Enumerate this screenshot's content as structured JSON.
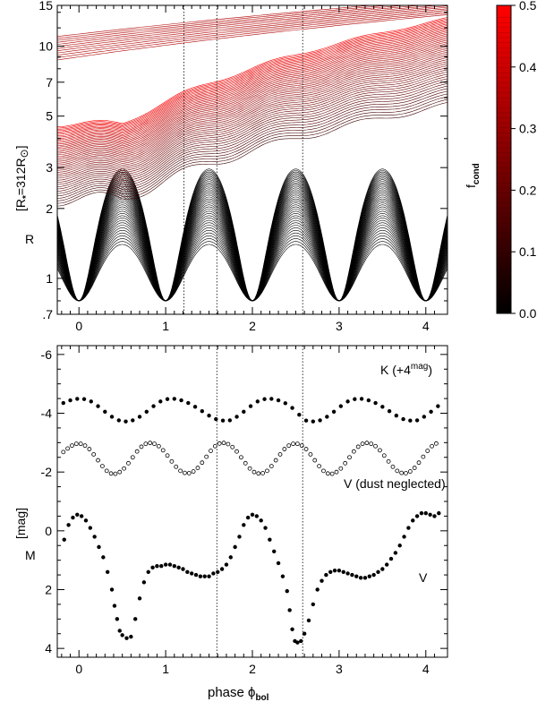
{
  "chart_data": [
    {
      "type": "line",
      "panel": "top",
      "ylabel": "R",
      "ylabel_unit": "[R",
      "ylabel_sub": "*",
      "ylabel_eq": "=312R",
      "ylabel_end": "]",
      "yscale": "log",
      "xlim": [
        -0.25,
        4.25
      ],
      "ylim": [
        0.7,
        15
      ],
      "x_ticks": [
        0,
        1,
        2,
        3,
        4
      ],
      "x_tick_labels": [
        "0",
        "1",
        "2",
        "3",
        "4"
      ],
      "y_ticks": [
        0.7,
        1,
        2,
        3,
        5,
        7,
        10,
        15
      ],
      "y_tick_labels": [
        ".7",
        "1",
        "2",
        "3",
        "5",
        "7",
        "10",
        "15"
      ],
      "vertical_dotted_lines": [
        1.21,
        1.59,
        2.58
      ],
      "description_series": [
        {
          "name": "",
          "pulsation_min_radius": 0.8,
          "pulsation_max_radius": 2.4,
          "period": 1.0
        }
      ],
      "colorbar": {
        "label": "f",
        "label_sub": "cond",
        "range": [
          0.0,
          0.5
        ],
        "ticks": [
          0.0,
          0.1,
          0.2,
          0.3,
          0.4,
          0.5
        ],
        "tick_labels": [
          "0.0",
          "0.1",
          "0.2",
          "0.3",
          "0.4",
          "0.5"
        ],
        "color_low": "#000000",
        "color_high": "#ff0000"
      }
    },
    {
      "type": "scatter",
      "panel": "bottom",
      "xlabel": "phase ϕ",
      "xlabel_sub": "bol",
      "ylabel": "M",
      "ylabel_unit": "[mag]",
      "xlim": [
        -0.25,
        4.25
      ],
      "ylim": [
        4.3,
        -6.3
      ],
      "x_ticks": [
        0,
        1,
        2,
        3,
        4
      ],
      "x_tick_labels": [
        "0",
        "1",
        "2",
        "3",
        "4"
      ],
      "y_ticks": [
        -6,
        -4,
        -2,
        0,
        2,
        4
      ],
      "y_tick_labels": [
        "-6",
        "-4",
        "-2",
        "0",
        "2",
        "4"
      ],
      "vertical_dotted_lines": [
        1.59,
        2.58
      ],
      "series": [
        {
          "name": "K (+4",
          "name_sup": "mag",
          "name_end": ")",
          "marker": "filled",
          "x": [
            -0.18,
            -0.1,
            -0.02,
            0.06,
            0.14,
            0.22,
            0.3,
            0.38,
            0.46,
            0.54,
            0.62,
            0.7,
            0.78,
            0.86,
            0.94,
            1.02,
            1.1,
            1.18,
            1.26,
            1.34,
            1.42,
            1.5,
            1.58,
            1.66,
            1.74,
            1.82,
            1.9,
            1.98,
            2.06,
            2.14,
            2.22,
            2.3,
            2.38,
            2.46,
            2.54,
            2.62,
            2.7,
            2.78,
            2.86,
            2.94,
            3.02,
            3.1,
            3.18,
            3.26,
            3.34,
            3.42,
            3.5,
            3.58,
            3.66,
            3.74,
            3.82,
            3.9,
            3.98,
            4.06,
            4.14
          ],
          "y": [
            -4.35,
            -4.44,
            -4.49,
            -4.48,
            -4.4,
            -4.24,
            -4.05,
            -3.88,
            -3.76,
            -3.72,
            -3.76,
            -3.88,
            -4.05,
            -4.24,
            -4.4,
            -4.48,
            -4.49,
            -4.44,
            -4.35,
            -4.22,
            -4.07,
            -3.92,
            -3.8,
            -3.75,
            -3.76,
            -3.88,
            -4.05,
            -4.24,
            -4.4,
            -4.48,
            -4.49,
            -4.44,
            -4.34,
            -4.18,
            -3.95,
            -3.75,
            -3.72,
            -3.76,
            -3.88,
            -4.05,
            -4.24,
            -4.4,
            -4.48,
            -4.49,
            -4.44,
            -4.35,
            -4.22,
            -4.07,
            -3.92,
            -3.8,
            -3.75,
            -3.76,
            -3.88,
            -4.05,
            -4.24
          ]
        },
        {
          "name": "V (dust neglected)",
          "marker": "open",
          "x": [
            -0.18,
            -0.13,
            -0.08,
            -0.03,
            0.02,
            0.07,
            0.12,
            0.17,
            0.22,
            0.27,
            0.32,
            0.37,
            0.42,
            0.47,
            0.52,
            0.57,
            0.62,
            0.67,
            0.72,
            0.77,
            0.82,
            0.87,
            0.92,
            0.97,
            1.02,
            1.07,
            1.12,
            1.17,
            1.22,
            1.27,
            1.32,
            1.37,
            1.42,
            1.47,
            1.52,
            1.57,
            1.62,
            1.67,
            1.72,
            1.77,
            1.82,
            1.87,
            1.92,
            1.97,
            2.02,
            2.07,
            2.12,
            2.17,
            2.22,
            2.27,
            2.32,
            2.37,
            2.42,
            2.47,
            2.52,
            2.57,
            2.62,
            2.67,
            2.72,
            2.77,
            2.82,
            2.87,
            2.92,
            2.97,
            3.02,
            3.07,
            3.12,
            3.17,
            3.22,
            3.27,
            3.32,
            3.37,
            3.42,
            3.47,
            3.52,
            3.57,
            3.62,
            3.67,
            3.72,
            3.77,
            3.82,
            3.87,
            3.92,
            3.97,
            4.02,
            4.07,
            4.12
          ],
          "y": [
            -2.68,
            -2.8,
            -2.9,
            -2.96,
            -2.96,
            -2.9,
            -2.78,
            -2.6,
            -2.4,
            -2.2,
            -2.04,
            -1.95,
            -1.94,
            -2.0,
            -2.12,
            -2.3,
            -2.5,
            -2.7,
            -2.86,
            -2.96,
            -2.99,
            -2.96,
            -2.88,
            -2.74,
            -2.56,
            -2.36,
            -2.18,
            -2.04,
            -1.97,
            -1.96,
            -2.02,
            -2.14,
            -2.32,
            -2.52,
            -2.72,
            -2.88,
            -2.97,
            -2.99,
            -2.95,
            -2.85,
            -2.7,
            -2.5,
            -2.3,
            -2.12,
            -2.0,
            -1.95,
            -1.96,
            -2.04,
            -2.2,
            -2.4,
            -2.6,
            -2.78,
            -2.9,
            -2.96,
            -2.96,
            -2.9,
            -2.78,
            -2.6,
            -2.4,
            -2.2,
            -2.04,
            -1.95,
            -1.94,
            -2.0,
            -2.12,
            -2.3,
            -2.5,
            -2.7,
            -2.86,
            -2.96,
            -2.99,
            -2.96,
            -2.88,
            -2.74,
            -2.56,
            -2.36,
            -2.18,
            -2.04,
            -1.97,
            -1.96,
            -2.02,
            -2.14,
            -2.32,
            -2.52,
            -2.72,
            -2.88,
            -2.97
          ]
        },
        {
          "name": "V",
          "marker": "filled",
          "x": [
            -0.17,
            -0.12,
            -0.07,
            -0.02,
            0.03,
            0.08,
            0.13,
            0.18,
            0.23,
            0.28,
            0.33,
            0.38,
            0.41,
            0.44,
            0.47,
            0.5,
            0.55,
            0.6,
            0.65,
            0.7,
            0.75,
            0.8,
            0.85,
            0.9,
            0.95,
            1.0,
            1.05,
            1.1,
            1.15,
            1.2,
            1.25,
            1.3,
            1.35,
            1.4,
            1.45,
            1.5,
            1.55,
            1.6,
            1.65,
            1.7,
            1.75,
            1.8,
            1.85,
            1.9,
            1.95,
            2.0,
            2.05,
            2.1,
            2.15,
            2.2,
            2.25,
            2.3,
            2.35,
            2.4,
            2.43,
            2.46,
            2.49,
            2.52,
            2.56,
            2.6,
            2.65,
            2.7,
            2.75,
            2.8,
            2.85,
            2.9,
            2.95,
            3.0,
            3.05,
            3.1,
            3.15,
            3.2,
            3.25,
            3.3,
            3.35,
            3.4,
            3.45,
            3.5,
            3.55,
            3.6,
            3.65,
            3.7,
            3.75,
            3.8,
            3.85,
            3.9,
            3.95,
            4.0,
            4.05,
            4.1,
            4.15
          ],
          "y": [
            0.3,
            -0.2,
            -0.45,
            -0.55,
            -0.5,
            -0.35,
            -0.1,
            0.2,
            0.55,
            0.9,
            1.4,
            2.0,
            2.55,
            3.0,
            3.4,
            3.55,
            3.65,
            3.6,
            3.0,
            2.3,
            1.75,
            1.4,
            1.25,
            1.2,
            1.2,
            1.15,
            1.15,
            1.2,
            1.25,
            1.3,
            1.4,
            1.45,
            1.5,
            1.55,
            1.55,
            1.55,
            1.45,
            1.4,
            1.3,
            1.15,
            0.9,
            0.55,
            0.2,
            -0.2,
            -0.45,
            -0.55,
            -0.5,
            -0.35,
            -0.1,
            0.3,
            0.7,
            1.1,
            1.55,
            2.05,
            2.7,
            3.35,
            3.75,
            3.8,
            3.75,
            3.5,
            3.05,
            2.5,
            2.0,
            1.7,
            1.5,
            1.4,
            1.35,
            1.35,
            1.4,
            1.45,
            1.5,
            1.55,
            1.6,
            1.6,
            1.55,
            1.5,
            1.4,
            1.3,
            1.15,
            0.95,
            0.75,
            0.5,
            0.2,
            -0.1,
            -0.35,
            -0.5,
            -0.6,
            -0.6,
            -0.55,
            -0.5,
            -0.6
          ]
        }
      ]
    }
  ]
}
